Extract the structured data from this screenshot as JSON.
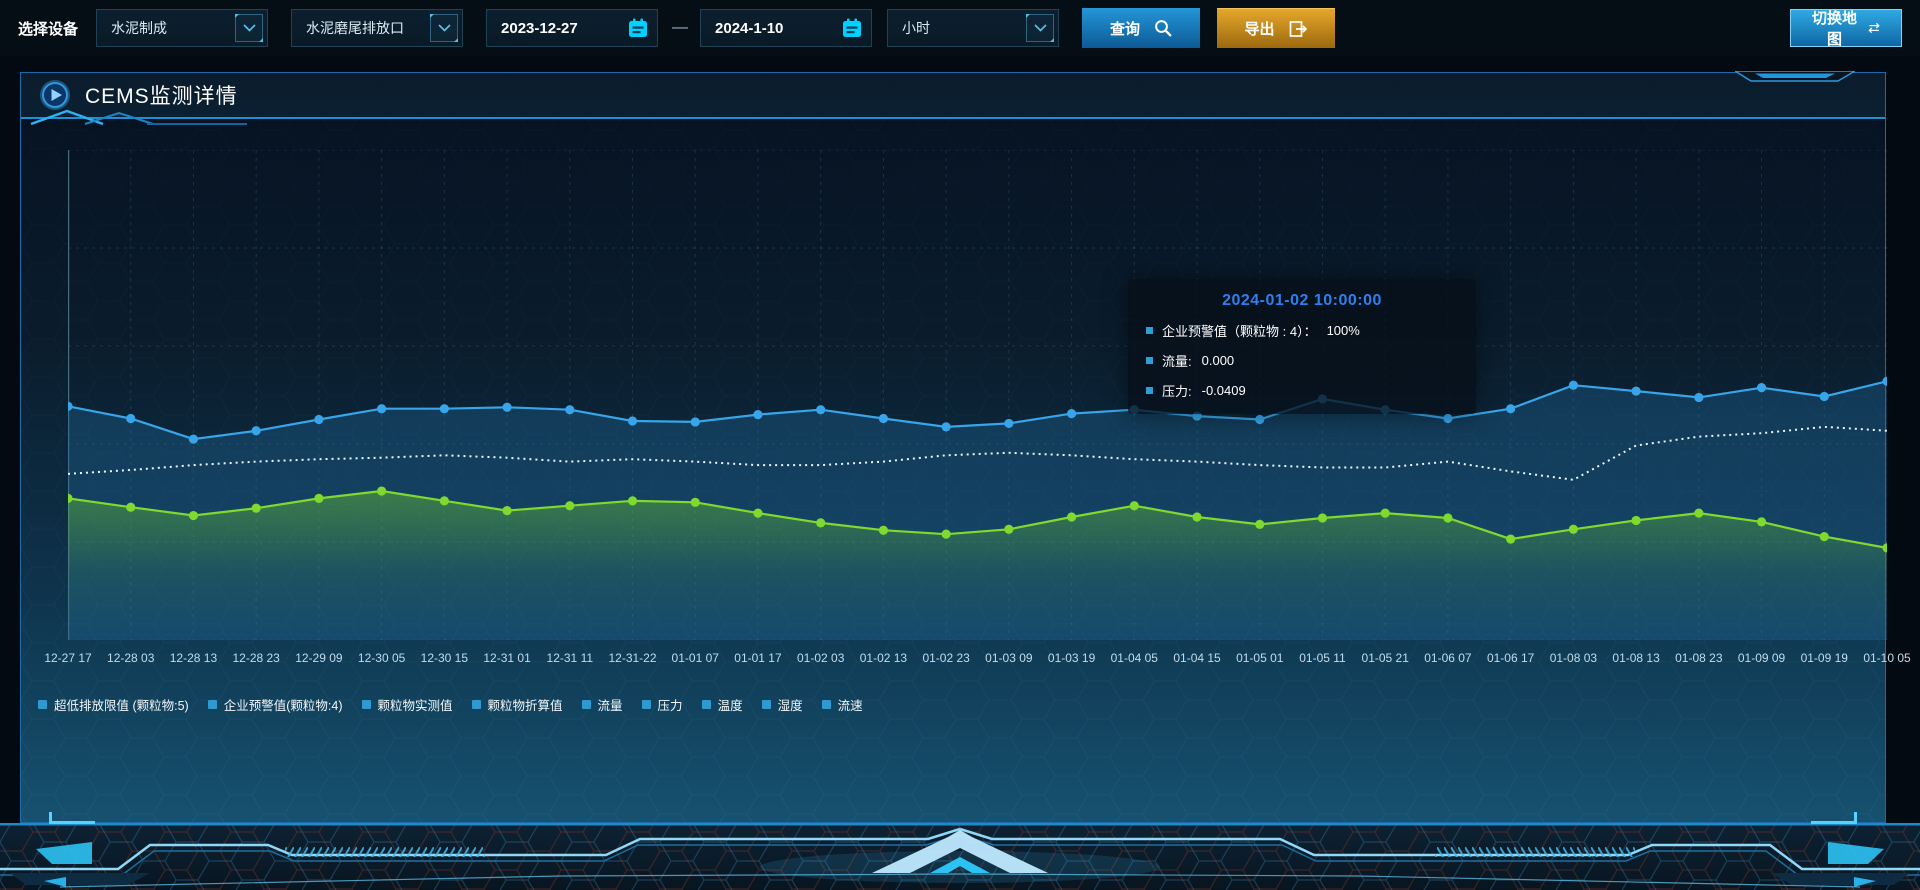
{
  "toolbar": {
    "device_label": "选择设备",
    "device_select": "水泥制成",
    "outlet_select": "水泥磨尾排放口",
    "date_from": "2023-12-27",
    "date_separator": "—",
    "date_to": "2024-1-10",
    "interval_select": "小时",
    "query_label": "查询",
    "export_label": "导出",
    "switch_map_label": "切换地图"
  },
  "panel": {
    "title": "CEMS监测详情"
  },
  "tooltip": {
    "title": "2024-01-02 10:00:00",
    "rows": [
      {
        "label": "企业预警值（颗粒物 : 4）：",
        "value": "100%"
      },
      {
        "label": "流量:",
        "value": "0.000"
      },
      {
        "label": "压力:",
        "value": "-0.0409"
      }
    ]
  },
  "chart_data": {
    "type": "line",
    "title": "",
    "xlabel": "",
    "ylabel": "",
    "ylim": [
      0,
      100
    ],
    "grid": true,
    "legend_position": "bottom-left",
    "x": [
      "12-27 17",
      "12-28 03",
      "12-28 13",
      "12-28 23",
      "12-29 09",
      "12-30 05",
      "12-30 15",
      "12-31 01",
      "12-31 11",
      "12-31-22",
      "01-01 07",
      "01-01 17",
      "01-02 03",
      "01-02 13",
      "01-02 23",
      "01-03 09",
      "01-03 19",
      "01-04 05",
      "01-04 15",
      "01-05 01",
      "01-05 11",
      "01-05 21",
      "01-06 07",
      "01-06 17",
      "01-08 03",
      "01-08 13",
      "01-08 23",
      "01-09 09",
      "01-09 19",
      "01-10 05"
    ],
    "series": [
      {
        "name": "流量",
        "color": "#38a5ea",
        "style": "solid",
        "markers": true,
        "area": "flat",
        "values": [
          47.7,
          45.2,
          41.0,
          42.7,
          45.0,
          47.2,
          47.2,
          47.5,
          47.0,
          44.7,
          44.5,
          46.0,
          47.0,
          45.2,
          43.5,
          44.2,
          46.2,
          47.0,
          45.7,
          45.0,
          49.2,
          47.0,
          45.2,
          47.2,
          52.0,
          50.8,
          49.5,
          51.5,
          49.7,
          52.8
        ]
      },
      {
        "name": "企业预警值(颗粒物:4)",
        "color": "#edf6fa",
        "style": "dotted",
        "markers": false,
        "area": "none",
        "values": [
          33.9,
          34.7,
          35.7,
          36.4,
          36.9,
          37.2,
          37.7,
          37.2,
          36.4,
          36.9,
          36.4,
          35.7,
          35.7,
          36.4,
          37.7,
          38.2,
          37.7,
          36.9,
          36.4,
          35.7,
          35.2,
          35.2,
          36.4,
          34.4,
          32.7,
          39.7,
          41.5,
          42.2,
          43.5,
          42.7
        ]
      },
      {
        "name": "压力",
        "color": "#7fd92e",
        "style": "solid",
        "markers": true,
        "area": "fade",
        "values": [
          28.9,
          27.1,
          25.4,
          26.9,
          28.9,
          30.4,
          28.4,
          26.4,
          27.4,
          28.4,
          28.1,
          25.9,
          23.9,
          22.4,
          21.6,
          22.6,
          25.1,
          27.4,
          25.1,
          23.6,
          24.9,
          25.9,
          24.9,
          20.6,
          22.6,
          24.4,
          25.9,
          24.1,
          21.1,
          18.8
        ]
      }
    ],
    "legend": [
      "超低排放限值 (颗粒物:5)",
      "企业预警值(颗粒物:4)",
      "颗粒物实测值",
      "颗粒物折算值",
      "流量",
      "压力",
      "温度",
      "湿度",
      "流速"
    ]
  },
  "icons": {
    "query": "search-icon",
    "export": "export-arrow-icon",
    "switch_map": "swap-arrows-icon",
    "date": "calendar-icon",
    "select": "chevron-down-icon",
    "panel_title": "play-icon"
  },
  "colors": {
    "accent": "#2d9fd8",
    "tooltip_title": "#2e7ff2",
    "series_flow": "#38a5ea",
    "series_warning": "#edf6fa",
    "series_pressure": "#7fd92e",
    "query_button": "#1a86c9",
    "export_button": "#c98a1d",
    "panel_border": "#1a6cab"
  }
}
